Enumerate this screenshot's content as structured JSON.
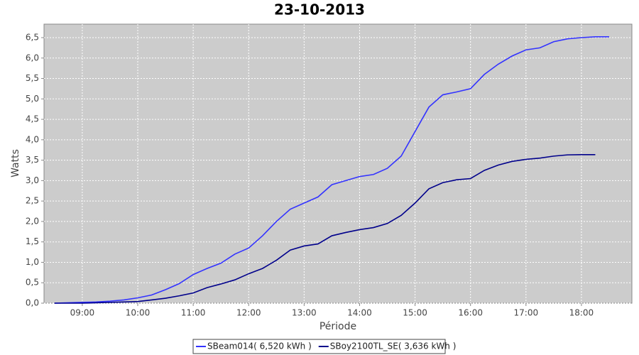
{
  "chart_data": {
    "type": "line",
    "title": "23-10-2013",
    "x_label": "Période",
    "y_label": "Watts",
    "x": [
      8.5,
      8.75,
      9,
      9.25,
      9.5,
      9.75,
      10,
      10.25,
      10.5,
      10.75,
      11,
      11.25,
      11.5,
      11.75,
      12,
      12.25,
      12.5,
      12.75,
      13,
      13.25,
      13.5,
      13.75,
      14,
      14.25,
      14.5,
      14.75,
      15,
      15.25,
      15.5,
      15.75,
      16,
      16.25,
      16.5,
      16.75,
      17,
      17.25,
      17.5,
      17.75,
      18,
      18.25,
      18.5,
      18.75
    ],
    "series": [
      {
        "name": "SBeam014( 6,520 kWh )",
        "color": "#3333ff",
        "values": [
          0,
          0.01,
          0.02,
          0.03,
          0.05,
          0.08,
          0.13,
          0.2,
          0.33,
          0.48,
          0.7,
          0.85,
          0.98,
          1.2,
          1.35,
          1.65,
          2.0,
          2.3,
          2.45,
          2.6,
          2.9,
          3.0,
          3.1,
          3.15,
          3.3,
          3.6,
          4.2,
          4.8,
          5.1,
          5.17,
          5.25,
          5.6,
          5.85,
          6.05,
          6.2,
          6.25,
          6.4,
          6.47,
          6.5,
          6.52,
          6.52,
          null
        ]
      },
      {
        "name": "SBoy2100TL_SE( 3,636 kWh )",
        "color": "#00008b",
        "values": [
          0,
          0,
          0,
          0.01,
          0.02,
          0.03,
          0.04,
          0.08,
          0.12,
          0.18,
          0.25,
          0.38,
          0.47,
          0.57,
          0.72,
          0.85,
          1.05,
          1.3,
          1.4,
          1.45,
          1.65,
          1.73,
          1.8,
          1.85,
          1.95,
          2.15,
          2.45,
          2.8,
          2.95,
          3.02,
          3.05,
          3.25,
          3.38,
          3.47,
          3.52,
          3.55,
          3.6,
          3.63,
          3.636,
          3.636,
          null,
          null
        ]
      }
    ],
    "xlim": [
      8.31,
      18.91
    ],
    "xticks": [
      {
        "value": 9,
        "label": "09:00"
      },
      {
        "value": 10,
        "label": "10:00"
      },
      {
        "value": 11,
        "label": "11:00"
      },
      {
        "value": 12,
        "label": "12:00"
      },
      {
        "value": 13,
        "label": "13:00"
      },
      {
        "value": 14,
        "label": "14:00"
      },
      {
        "value": 15,
        "label": "15:00"
      },
      {
        "value": 16,
        "label": "16:00"
      },
      {
        "value": 17,
        "label": "17:00"
      },
      {
        "value": 18,
        "label": "18:00"
      }
    ],
    "ylim": [
      0,
      6.83
    ],
    "yticks": [
      {
        "value": 0,
        "label": "0,0"
      },
      {
        "value": 0.5,
        "label": "0,5"
      },
      {
        "value": 1,
        "label": "1,0"
      },
      {
        "value": 1.5,
        "label": "1,5"
      },
      {
        "value": 2,
        "label": "2,0"
      },
      {
        "value": 2.5,
        "label": "2,5"
      },
      {
        "value": 3,
        "label": "3,0"
      },
      {
        "value": 3.5,
        "label": "3,5"
      },
      {
        "value": 4,
        "label": "4,0"
      },
      {
        "value": 4.5,
        "label": "4,5"
      },
      {
        "value": 5,
        "label": "5,0"
      },
      {
        "value": 5.5,
        "label": "5,5"
      },
      {
        "value": 6,
        "label": "6,0"
      },
      {
        "value": 6.5,
        "label": "6,5"
      }
    ],
    "grid": true,
    "legend": "bottom"
  }
}
